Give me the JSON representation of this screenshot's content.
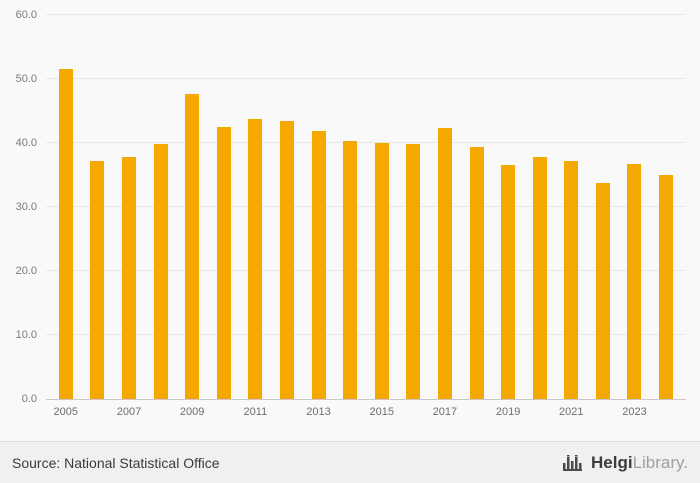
{
  "chart_data": {
    "type": "bar",
    "categories": [
      2005,
      2006,
      2007,
      2008,
      2009,
      2010,
      2011,
      2012,
      2013,
      2014,
      2015,
      2016,
      2017,
      2018,
      2019,
      2020,
      2021,
      2022,
      2023,
      2024
    ],
    "values": [
      51.5,
      37.2,
      37.8,
      39.8,
      47.7,
      42.5,
      43.7,
      43.5,
      41.8,
      40.3,
      40.0,
      39.9,
      42.4,
      39.3,
      36.6,
      37.8,
      37.2,
      33.8,
      36.7,
      35.0
    ],
    "title": "",
    "xlabel": "",
    "ylabel": "",
    "ylim": [
      0,
      60
    ],
    "yticks": [
      60,
      50,
      40,
      30,
      20,
      10,
      0
    ],
    "ytick_labels": [
      "60.0",
      "50.0",
      "40.0",
      "30.0",
      "20.0",
      "10.0",
      "0.0"
    ],
    "x_labels_shown": [
      "2005",
      "2007",
      "2009",
      "2011",
      "2013",
      "2015",
      "2017",
      "2019",
      "2021",
      "2023"
    ],
    "bar_color": "#F5A800",
    "grid": true,
    "legend": "none"
  },
  "footer": {
    "source": "Source: National Statistical Office",
    "logo_bold": "Helgi",
    "logo_light": "Library."
  }
}
